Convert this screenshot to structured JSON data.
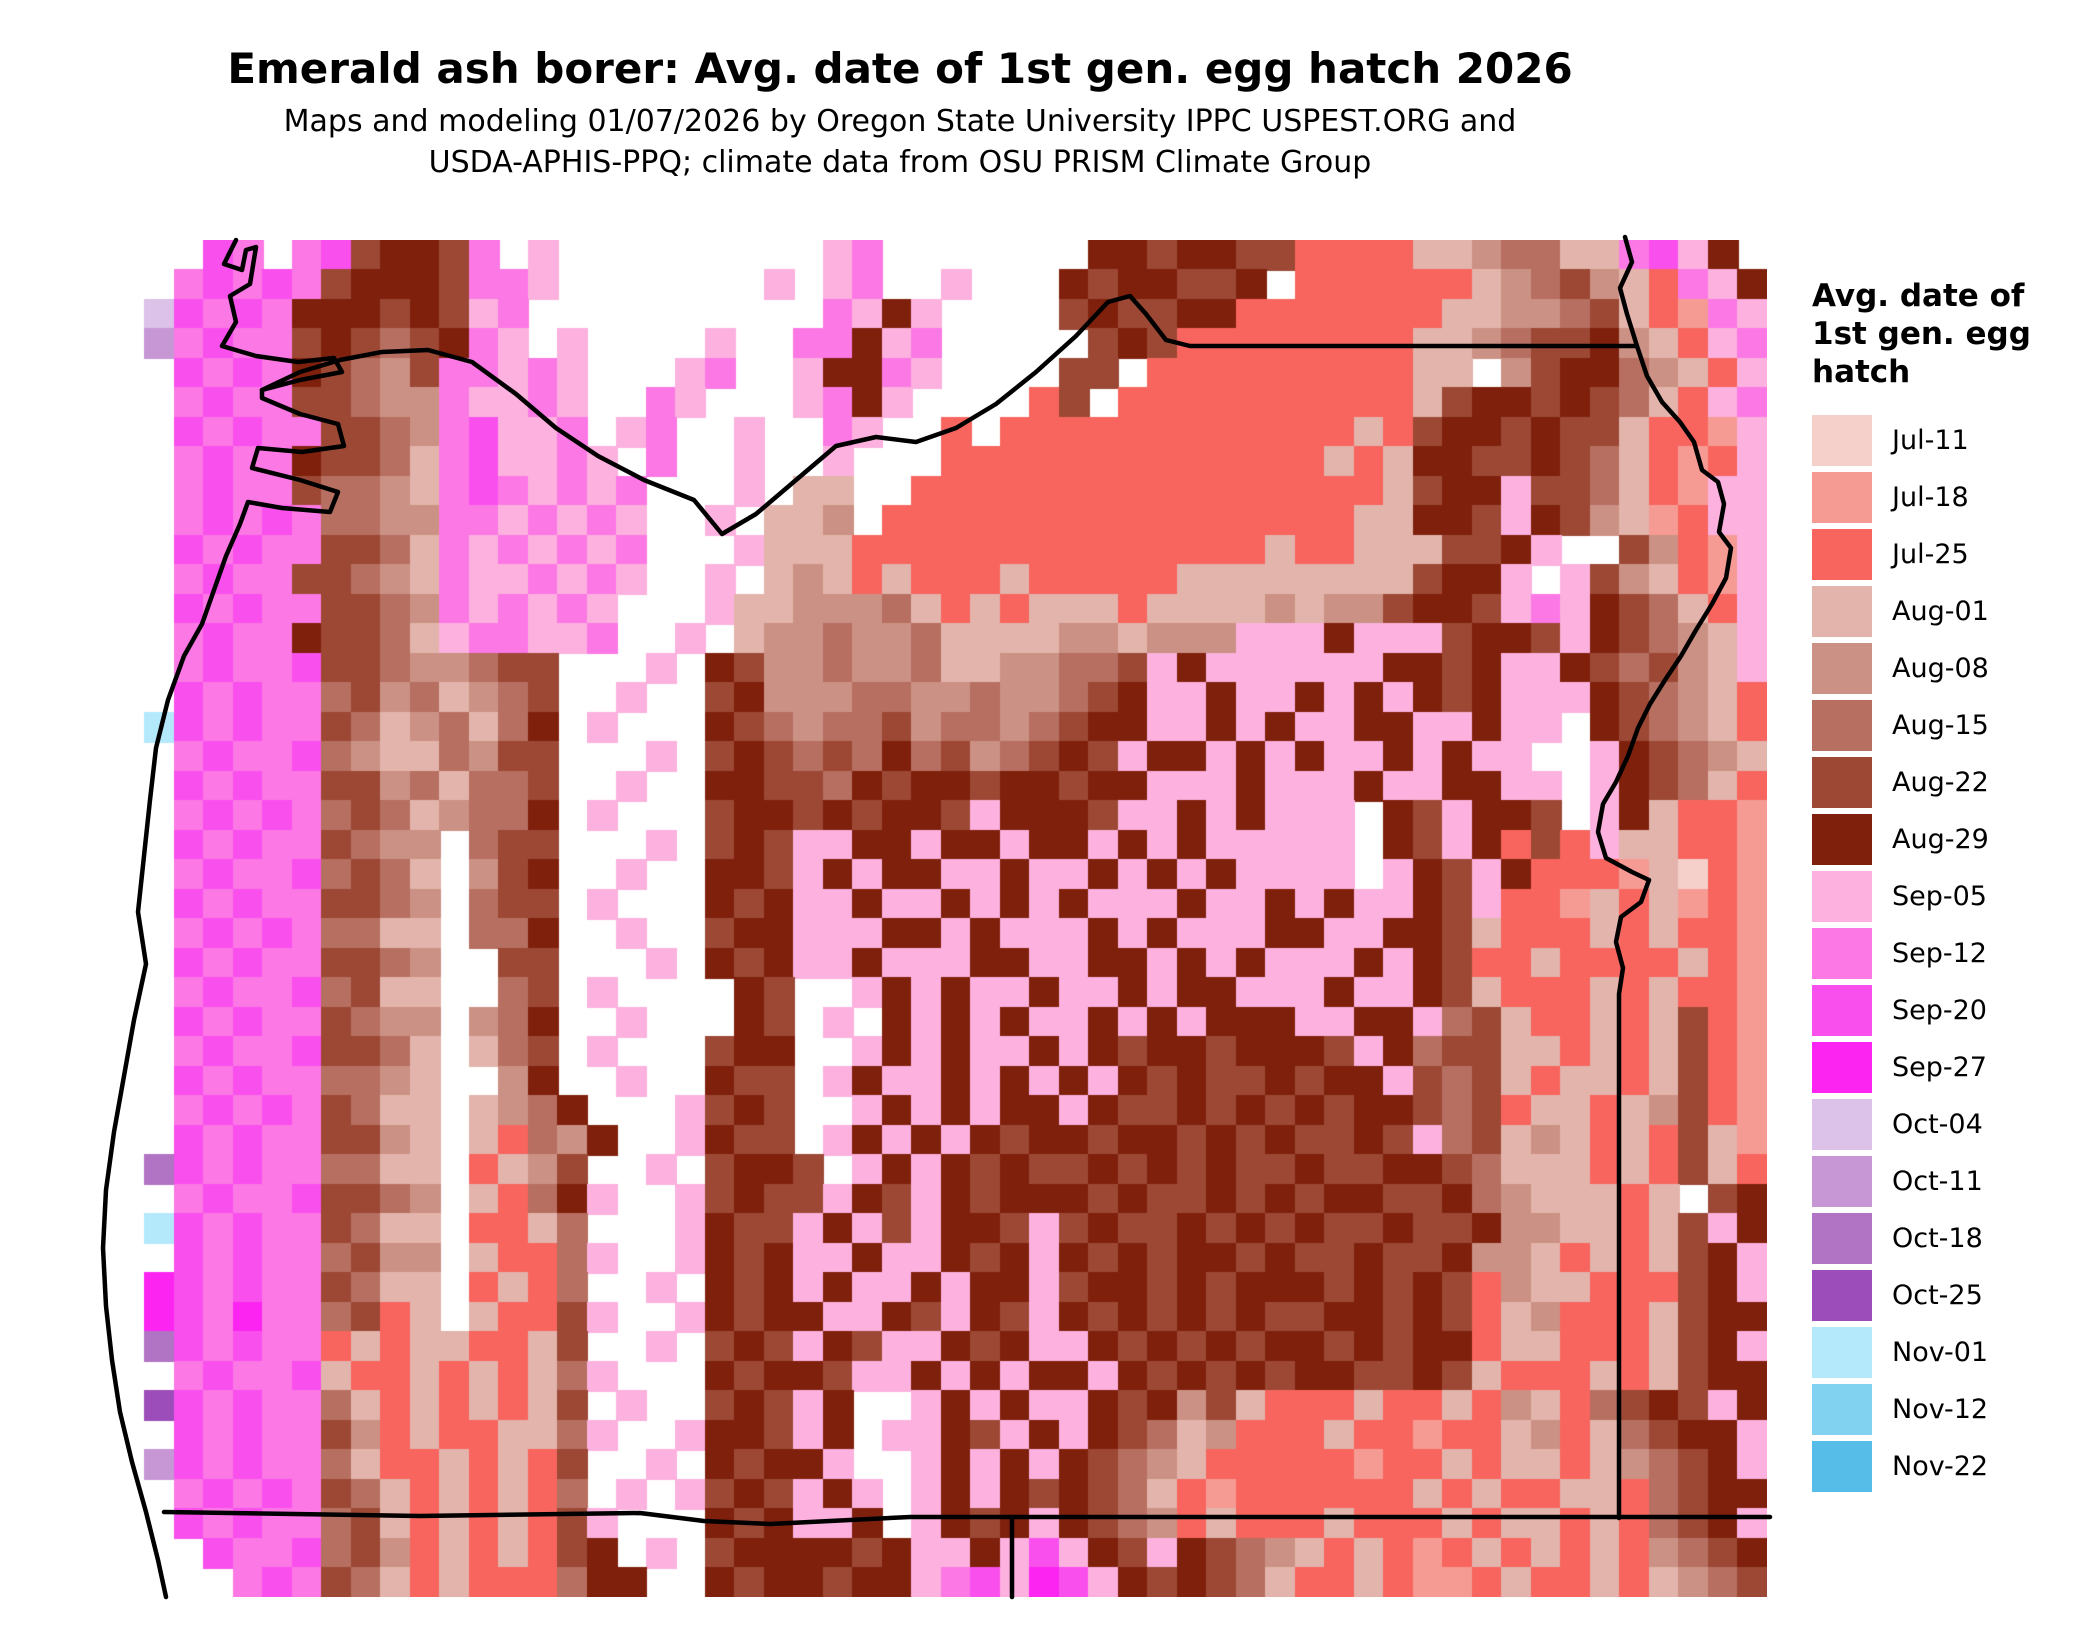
{
  "title": "Emerald ash borer: Avg. date of 1st gen. egg hatch 2026",
  "subtitle_line1": "Maps and modeling 01/07/2026 by Oregon State University IPPC USPEST.ORG and",
  "subtitle_line2": "USDA-APHIS-PPQ; climate data from OSU PRISM Climate Group",
  "legend": {
    "title_lines": [
      "Avg. date of",
      "1st gen. egg",
      "hatch"
    ],
    "items": [
      {
        "key": "a",
        "label": "Jul-11",
        "color": "#f5d0cb"
      },
      {
        "key": "b",
        "label": "Jul-18",
        "color": "#f59b94"
      },
      {
        "key": "c",
        "label": "Jul-25",
        "color": "#f8655f"
      },
      {
        "key": "d",
        "label": "Aug-01",
        "color": "#e2b4ab"
      },
      {
        "key": "e",
        "label": "Aug-08",
        "color": "#cb9184"
      },
      {
        "key": "f",
        "label": "Aug-15",
        "color": "#b66f60"
      },
      {
        "key": "g",
        "label": "Aug-22",
        "color": "#9c4835"
      },
      {
        "key": "h",
        "label": "Aug-29",
        "color": "#7f200c"
      },
      {
        "key": "i",
        "label": "Sep-05",
        "color": "#fdb1de"
      },
      {
        "key": "j",
        "label": "Sep-12",
        "color": "#fb78e5"
      },
      {
        "key": "k",
        "label": "Sep-20",
        "color": "#f94fec"
      },
      {
        "key": "l",
        "label": "Sep-27",
        "color": "#fb24f1"
      },
      {
        "key": "m",
        "label": "Oct-04",
        "color": "#dcc1e8"
      },
      {
        "key": "n",
        "label": "Oct-11",
        "color": "#c697d4"
      },
      {
        "key": "o",
        "label": "Oct-18",
        "color": "#b173c4"
      },
      {
        "key": "p",
        "label": "Oct-25",
        "color": "#9c4db9"
      },
      {
        "key": "q",
        "label": "Nov-01",
        "color": "#b3e9fb"
      },
      {
        "key": "r",
        "label": "Nov-12",
        "color": "#81d2f0"
      },
      {
        "key": "s",
        "label": "Nov-22",
        "color": "#55bde7"
      }
    ]
  },
  "map": {
    "no_data_color": "#ffffff",
    "boundary_color": "#000000",
    "grid_rows": [
      "...kj.jkghhgj.i.........ij.......hhghhggccccddeffddjkih.",
      "..jkjkjghhhgjji.......i.ij..i...hghhggh.ccccccdefgedcjih",
      ".mkjkjhhhghgij..........jihi....ghgghhcccccccddeefgdcbji",
      ".njkjjghgfghji.i....i..jjhij.....ghgccccccccddefgghedcij",
      "..kjkjhgfegjjiji...ij..ihhji....gg.cccccccccdd.eghhfedci",
      "..jkjjggfeejiiji..ji...ijhi....cg.ccccccccccdghhghgfdcij",
      "..kjkjjggfejkiij.ij..i..ji..c.ccccccccccccdcghhghggdccbi",
      "..jkjjhggfdjkiiji.j..i..i...cccccccccccccdcdhhgghgfdcbci",
      "..jkjjgffedjkjijij...i.dd..ccccccccccccccccdghhiggfdcbii",
      "..jkjkjffeejjijiji..i.dde.ccccccccccccccccddhhgihgedbcii",
      "..kjkjjggfdjijijij...idddccccccccccccccdccdddgghi..gecbii",
      "..jkjjggfedjiijiji..i.dedcdcccdcccccddddddddghhi.igedcbi",
      "..kjkjjggfejijiji...iddeeefdcdcdddcddddedeeghhgijihgfdci",
      "..jkjjhggfdijjiij..i.deefeefddddeedeeeiiihiiighhgihgfedi",
      "..jkjjkggfeefgg...i.hgeefeefddeeffgihiiiiiihhghiihgfgedi",
      "..kjkjjfgefdefg..i..gheeeffeefeefghiihiihihihghiiihgfedc",
      ".qkjkjjgfdefdfh.i...hgfeffgeffefghhiihihiihhiihii.hgfedc",
      "..jkjjkfeddfegg...i.ghgfgfhfgefghgihhihihiihihii..ihgfed",
      "..kjkjjggefdffg..i..hhggfhghhghhghhiiihiiihiihhii.ihgfdc",
      "..jkjkjfgfdeffh.i...ghhghghhgihhhgiihihiii.hgihhg.ihdccb",
      "..kjkjjgfee.fgg...i.ghgiihhihhihhihihiiiii.hgihcgciddccb",
      "..jkjjkfgfd.egh..i..hhgihihhiihiihihihiiii.ihgihcccbdacbb",
      "..kjkjjggfe.fgg.i...hghiihiihihihiiihiihihiihgiccbdcdbcb",
      "..jkjkjffdd.ffh..i..ghhiiihhihiiihihiiihhiihhgdcccdcdccb",
      "..kjkjjggfe..gg...i.hghiihiiihhiihhihihiiihihgccdccccdcb",
      "..jkjjkfgdd..fg.i....hg..ihihiihiihihhiiihiihgdcccdcdccb",
      "..kjkjjgfee.efh..i...hg.i.hihihiihihihhhiihhifgdccdcdgcb",
      "..jkjjkggfd.dfg.i...ghh..ihihiihihghhghhhgihfggddcdcdgcb",
      "..kjkjjffed..eh..i..hgg.ihiihihihihghgghghhigfgdcddcdgcb",
      "..jkjkjgfdd.defh...ighg..ihihihhihgghghghghhgfgcddcdegcb",
      "..kjkjjgged.dcfeh..ihgg.ihihihghhghhghghgghgifgdedcdcgdb",
      ".okjkjjffdd.cdeg..i.ghhg.ihihghgghghghgghgghhgfdddcdcgdc",
      "..jkjjkggfe.dcfhi..ighggihgihghhhghgghghghhgghfedddcd.gh",
      ".qkjkjjgfdd.ccdf...ihggihigihhgighgghghghgghggheeddcdgih",
      "..kjkjjfgee.dccfi..ihghiihiihghihghghhghgghggheedcdcdghi",
      ".lkjkjjgfdd.cdcf..i.hghihiihihhighhghghhhghghgceddcccghi",
      ".lkjljjfgcd.dccgi..ihghhiihgihgihghghghgghhghgcdecccdghh",
      ".okjkjjcdcddccdg..i.ghgihgiihghiihghghghhghghhcddcccdghi",
      "..jkjjkdccdcdcdfi...hghhgiihihihhihghghghhgghgdcccdcdghh",
      ".pkjkjjfdcdcdcdg.i..ghgih..ihihiihghegdcccdccdcedcfghgih",
      "..kjkjjgecdccddfi..ihhgih.iihgihihgfdecccdccbccdecdfghhi",
      ".nkjkjjfdccdcdcg..i.hghhi..ihihihgfedcccccbccdcddcdefghi",
      "..jkjkjgfdcdcdcf.i.ighgihi.ihihghgfdcbccccccdcdccddcfghh",
      "..kjkjjfgdcdcdcgi...hghiih.ihghihgfecdcccdcccdcddcdcfghi",
      "...kjjkfgecdcdcgh.i.ghhhhghiihikihgihgfedcdcbcdcdcdcefgh",
      "....jkjgfdcdcccfhh..hghhghhijkilkihghgfdccdcbbcdccdcdefg"
    ]
  }
}
